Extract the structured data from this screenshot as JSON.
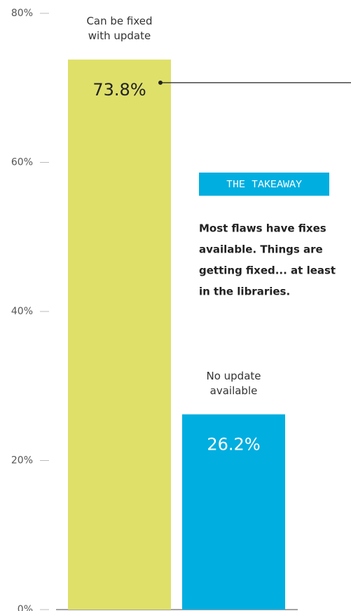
{
  "chart_data": {
    "type": "bar",
    "categories": [
      "Can be fixed with update",
      "No update available"
    ],
    "values": [
      73.8,
      26.2
    ],
    "value_labels": [
      "73.8%",
      "26.2%"
    ],
    "colors": [
      "#dfe06a",
      "#00aee0"
    ],
    "ylim": [
      0,
      80
    ],
    "yticks": [
      {
        "value": 0,
        "label": "0%"
      },
      {
        "value": 20,
        "label": "20%"
      },
      {
        "value": 40,
        "label": "40%"
      },
      {
        "value": 60,
        "label": "60%"
      },
      {
        "value": 80,
        "label": "80%"
      }
    ],
    "annotation": {
      "title": "THE TAKEAWAY",
      "lines": [
        "Most flaws have fixes",
        "available. Things are",
        "getting fixed... at least",
        "in the libraries."
      ]
    }
  }
}
